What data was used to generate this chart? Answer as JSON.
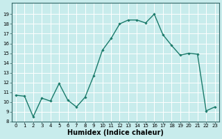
{
  "x": [
    0,
    1,
    2,
    3,
    4,
    5,
    6,
    7,
    8,
    9,
    10,
    11,
    12,
    13,
    14,
    15,
    16,
    17,
    18,
    19,
    20,
    21,
    22,
    23
  ],
  "y": [
    10.7,
    10.6,
    8.5,
    10.4,
    10.1,
    11.9,
    10.2,
    9.5,
    10.5,
    12.7,
    15.3,
    16.5,
    18.0,
    18.4,
    18.4,
    18.1,
    19.0,
    16.9,
    15.8,
    14.8,
    15.0,
    14.9,
    9.1,
    9.5
  ],
  "xlabel": "Humidex (Indice chaleur)",
  "ylim": [
    8,
    20
  ],
  "xlim": [
    -0.5,
    23.5
  ],
  "yticks": [
    8,
    9,
    10,
    11,
    12,
    13,
    14,
    15,
    16,
    17,
    18,
    19
  ],
  "xticks": [
    0,
    1,
    2,
    3,
    4,
    5,
    6,
    7,
    8,
    9,
    10,
    11,
    12,
    13,
    14,
    15,
    16,
    17,
    18,
    19,
    20,
    21,
    22,
    23
  ],
  "xtick_labels": [
    "0",
    "1",
    "2",
    "3",
    "4",
    "5",
    "6",
    "7",
    "8",
    "9",
    "10",
    "11",
    "12",
    "13",
    "14",
    "15",
    "16",
    "17",
    "18",
    "19",
    "20",
    "21",
    "22",
    "23"
  ],
  "line_color": "#1a7a6a",
  "marker": "D",
  "marker_size": 1.8,
  "bg_color": "#c8ecec",
  "grid_color": "#ffffff",
  "xlabel_fontsize": 7,
  "tick_fontsize": 5,
  "line_width": 1.0
}
